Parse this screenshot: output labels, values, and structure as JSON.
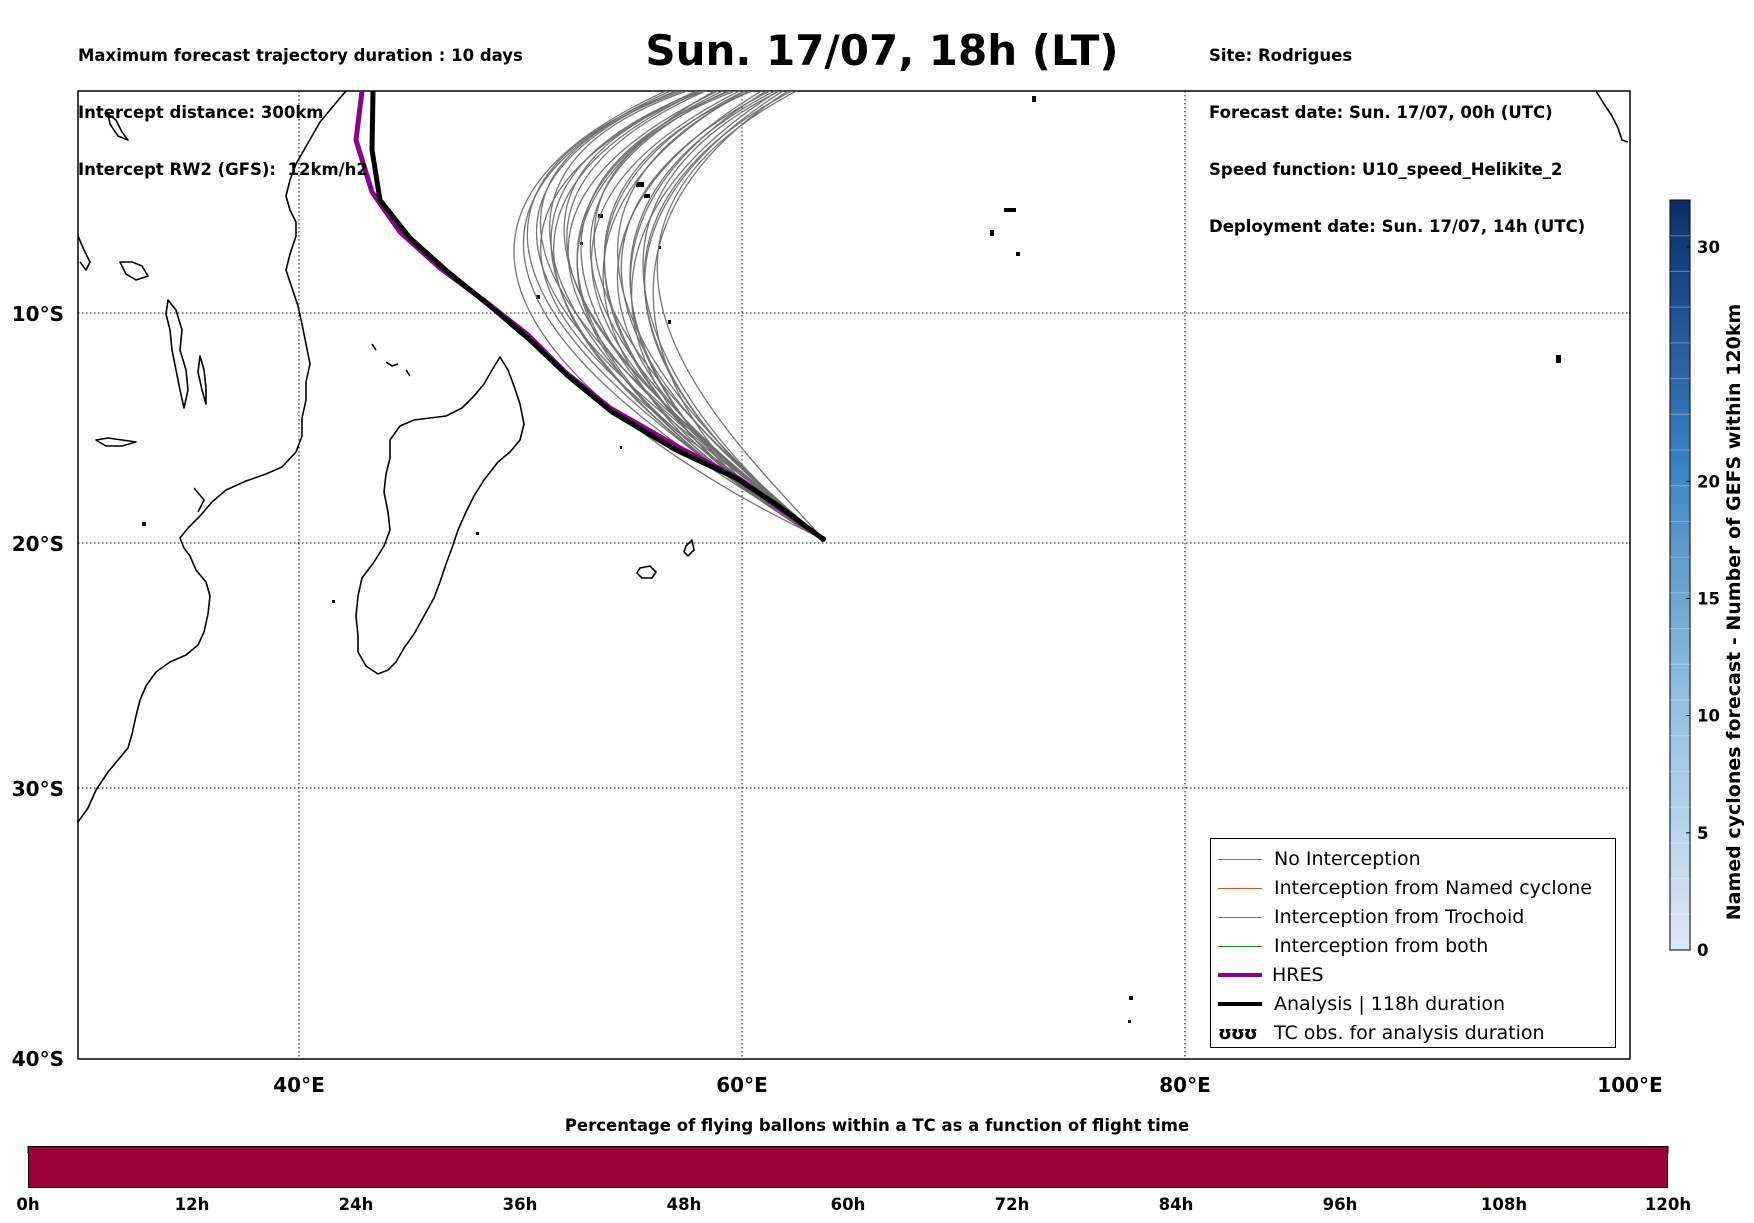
{
  "header": {
    "left_lines": [
      "Maximum forecast trajectory duration : 10 days",
      "Intercept distance: 300km",
      "Intercept RW2 (GFS):  12km/h2"
    ],
    "title": "Sun. 17/07, 18h (LT)",
    "right_lines": [
      "Site: Rodrigues",
      "Forecast date: Sun. 17/07, 00h (UTC)",
      "Speed function: U10_speed_Helikite_2",
      "Deployment date: Sun. 17/07, 14h (UTC)"
    ]
  },
  "map": {
    "lat_labels": [
      "10°S",
      "20°S",
      "30°S",
      "40°S"
    ],
    "lon_labels": [
      "40°E",
      "60°E",
      "80°E",
      "100°E"
    ],
    "extent": {
      "lon_min": 30,
      "lon_max": 100,
      "lat_min": -40,
      "lat_max": 0
    },
    "grid": "dotted",
    "colors": {
      "gefs": "#6e6e6e",
      "hres": "#8a008a",
      "analysis": "#000000",
      "coast": "#000000"
    },
    "launch_point": {
      "lon": 63.4,
      "lat": -19.7
    }
  },
  "legend": {
    "placement": "lower-right",
    "items": [
      {
        "label": "No Interception",
        "color": "#808080",
        "width": 1.2
      },
      {
        "label": "Interception from Named cyclone",
        "color": "#e0501e",
        "width": 1.2
      },
      {
        "label": "Interception from Trochoid",
        "color": "#8c7a12",
        "width": 1.2
      },
      {
        "label": "Interception from both",
        "color": "#1f8a1f",
        "width": 1.2
      },
      {
        "label": "HRES",
        "color": "#8a008a",
        "width": 4
      },
      {
        "label": "Analysis | 118h duration",
        "color": "#000000",
        "width": 4
      }
    ],
    "tc_obs_label": "TC obs. for analysis duration",
    "tc_obs_glyph": "ʊʊʊ"
  },
  "gefs_colorbar": {
    "title": "Named cyclones forecast - Number of GEFS within 120km",
    "ticks": [
      0,
      5,
      10,
      15,
      20,
      30
    ],
    "min": 0,
    "max": 32,
    "color_low": "#dde9f6",
    "color_high": "#0a2f6b"
  },
  "flight_colorbar": {
    "title": "Percentage of flying ballons within a TC as a function of flight time",
    "tick_labels": [
      "0h",
      "12h",
      "24h",
      "36h",
      "48h",
      "60h",
      "72h",
      "84h",
      "96h",
      "108h",
      "120h"
    ],
    "color": "#9e003a"
  }
}
